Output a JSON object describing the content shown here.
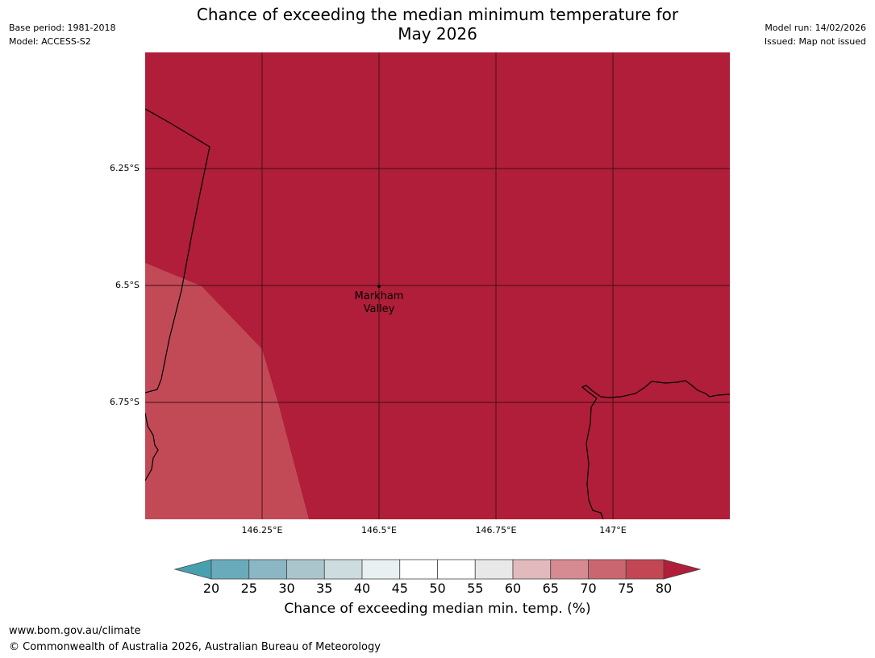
{
  "header": {
    "title_line1": "Chance of exceeding the median minimum temperature for",
    "title_line2": "May 2026",
    "base_period": "Base period: 1981-2018",
    "model": "Model: ACCESS-S2",
    "model_run": "Model run: 14/02/2026",
    "issued": "Issued: Map not issued"
  },
  "map": {
    "lat_labels": [
      "6.25°S",
      "6.5°S",
      "6.75°S"
    ],
    "lon_labels": [
      "146.25°E",
      "146.5°E",
      "146.75°E",
      "147°E"
    ],
    "location": {
      "name_line1": "Markham",
      "name_line2": "Valley"
    },
    "fill_colors": {
      "class_80_plus": "#b01e39",
      "class_75_80": "#c24a57"
    }
  },
  "colorbar": {
    "label": "Chance of exceeding median min. temp. (%)",
    "ticks": [
      "20",
      "25",
      "30",
      "35",
      "40",
      "45",
      "50",
      "55",
      "60",
      "65",
      "70",
      "75",
      "80"
    ],
    "colors": [
      "#47a0ae",
      "#6aabbb",
      "#8bb7c4",
      "#aac6cc",
      "#ccdcdf",
      "#e9f0f1",
      "#ffffff",
      "#ffffff",
      "#e8e8e8",
      "#e2b9bd",
      "#d68a92",
      "#ca6670",
      "#c24653",
      "#b01e39"
    ]
  },
  "footer": {
    "url": "www.bom.gov.au/climate",
    "copyright": "© Commonwealth of Australia 2026, Australian Bureau of Meteorology"
  }
}
